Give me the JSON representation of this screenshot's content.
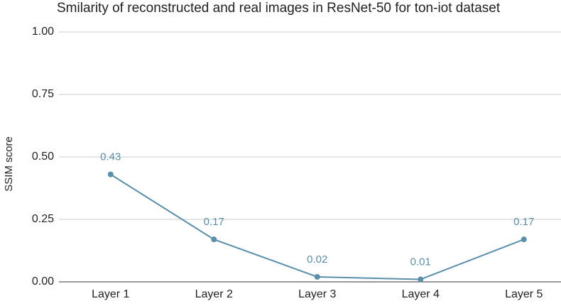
{
  "chart_data": {
    "type": "line",
    "title": "Smilarity of reconstructed and real images in ResNet-50 for ton-iot dataset",
    "y_label": "SSIM score",
    "categories": [
      "Layer 1",
      "Layer 2",
      "Layer 3",
      "Layer 4",
      "Layer 5"
    ],
    "values": [
      0.43,
      0.17,
      0.02,
      0.01,
      0.17
    ],
    "color": "#5a8fab",
    "ylim": [
      0,
      1
    ],
    "yticks": [
      {
        "value": 0,
        "label": "0.00"
      },
      0.25,
      {
        "value": 0.5,
        "label": "0.50"
      },
      0.75,
      {
        "value": 1,
        "label": "1.00"
      }
    ],
    "grid": true
  }
}
